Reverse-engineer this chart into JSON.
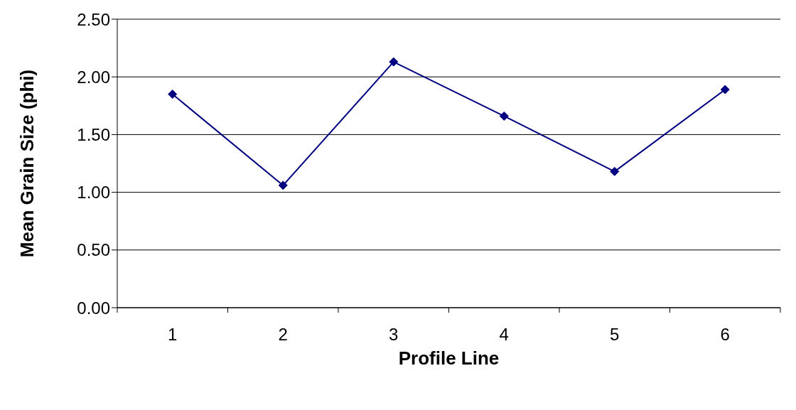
{
  "chart_data": {
    "type": "line",
    "xlabel": "Profile Line",
    "ylabel": "Mean Grain Size (phi)",
    "categories": [
      "1",
      "2",
      "3",
      "4",
      "5",
      "6"
    ],
    "series": [
      {
        "color": "#000080",
        "values": [
          1.85,
          1.06,
          2.13,
          1.66,
          1.18,
          1.89
        ]
      }
    ],
    "ylim": [
      0,
      2.5
    ],
    "yticks": [
      {
        "value": 0,
        "label": "0.00"
      },
      {
        "value": 0.5,
        "label": "0.50"
      },
      {
        "value": 1,
        "label": "1.00"
      },
      {
        "value": 1.5,
        "label": "1.50"
      },
      {
        "value": 2,
        "label": "2.00"
      },
      {
        "value": 2.5,
        "label": "2.50"
      }
    ],
    "grid": "y",
    "marker": "diamond",
    "line_style": "solid"
  }
}
